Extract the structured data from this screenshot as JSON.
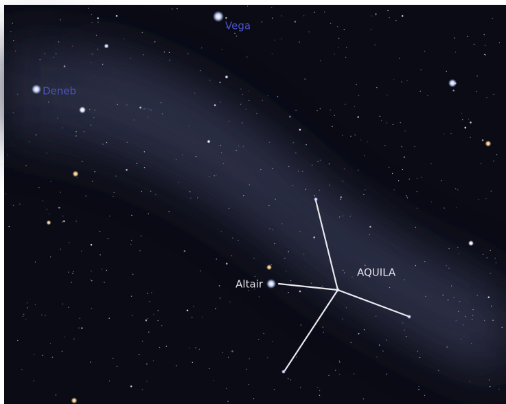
{
  "stars": [
    {
      "label": "Vega"
    },
    {
      "label": "Deneb"
    },
    {
      "label": "Altair"
    }
  ],
  "constellation": {
    "name": "AQUILA"
  }
}
